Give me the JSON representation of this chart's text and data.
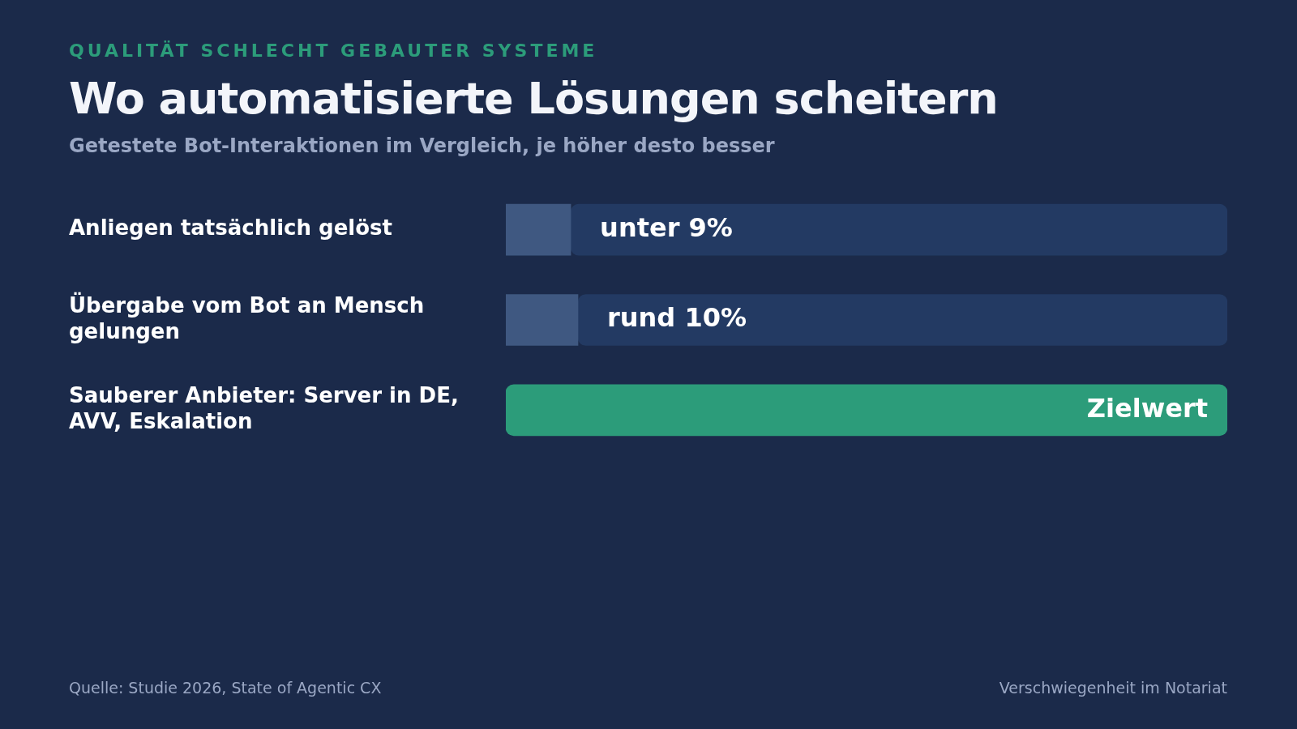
{
  "chart_data": {
    "type": "bar",
    "orientation": "horizontal",
    "title": "Wo automatisierte Lösungen scheitern",
    "subtitle": "Getestete Bot-Interaktionen im Vergleich, je höher desto besser",
    "categories": [
      "Anliegen tatsächlich gelöst",
      "Übergabe vom Bot an Mensch gelungen",
      "Sauberer Anbieter: Server in DE, AVV, Eskalation"
    ],
    "series": [
      {
        "colors": [
          "#3f5881",
          "#3f5881",
          "#2c9c7a"
        ],
        "values": [
          9,
          10,
          100
        ],
        "value_labels": [
          "unter 9%",
          "rund 10%",
          "Zielwert"
        ]
      },
      {
        "color": "#233a63",
        "values": [
          91,
          90,
          null
        ]
      }
    ],
    "stacked": true,
    "xlim": [
      0,
      100
    ],
    "annotations": [
      "QUALITÄT SCHLECHT GEBAUTER SYSTEME",
      "Quelle: Studie 2026, State of Agentic CX",
      "Verschwiegenheit im Notariat"
    ],
    "grid": false,
    "legend": false,
    "tick_labels": "y"
  }
}
